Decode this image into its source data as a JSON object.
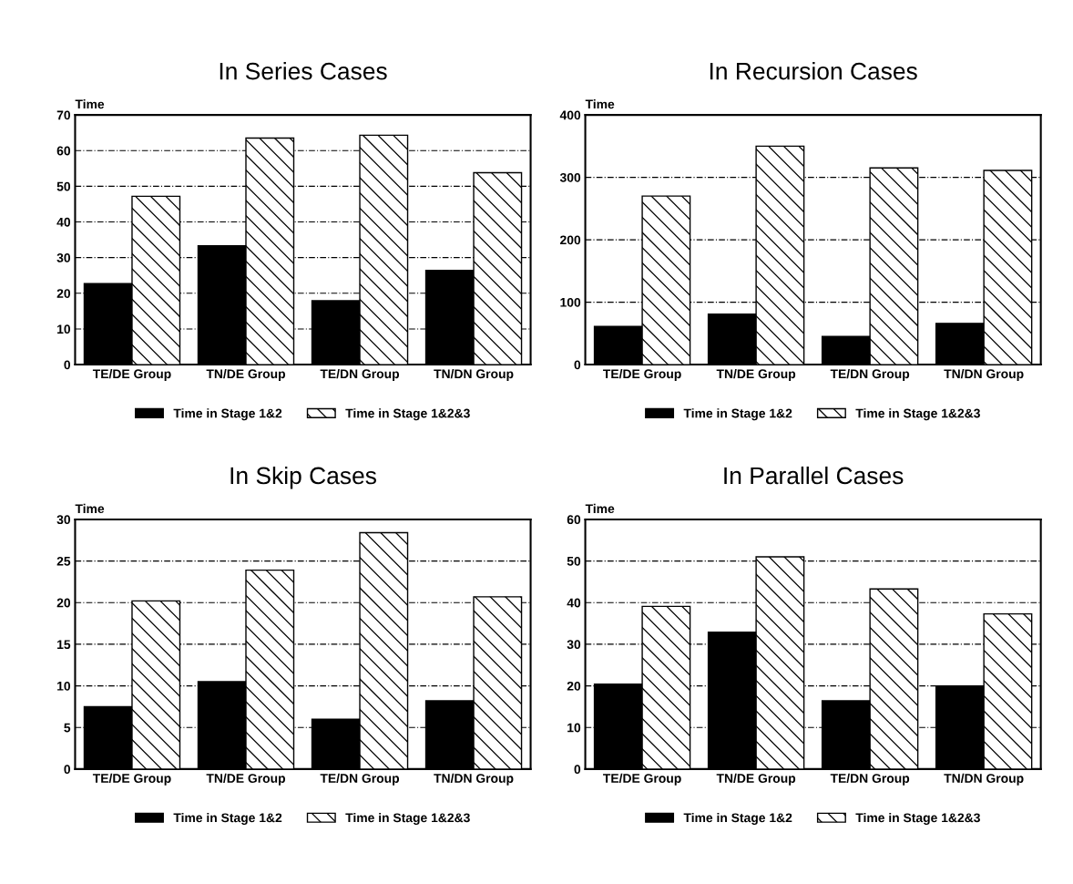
{
  "chart_data": [
    {
      "type": "bar",
      "title": "In Series Cases",
      "ylabel": "Time",
      "categories": [
        "TE/DE Group",
        "TN/DE Group",
        "TE/DN Group",
        "TN/DN Group"
      ],
      "series": [
        {
          "name": "Time in Stage 1&2",
          "color": "#000000",
          "values": [
            22.7,
            33.3,
            17.9,
            26.4
          ]
        },
        {
          "name": "Time in Stage 1&2&3",
          "color": "#000000",
          "values": [
            47.2,
            63.5,
            64.3,
            53.8
          ]
        }
      ],
      "ylim": [
        0,
        70
      ],
      "yticks": [
        0,
        10,
        20,
        30,
        40,
        50,
        60,
        70
      ],
      "grid": "y",
      "legend": "bottom"
    },
    {
      "type": "bar",
      "title": "In Recursion Cases",
      "ylabel": "Time",
      "categories": [
        "TE/DE Group",
        "TN/DE Group",
        "TE/DN Group",
        "TN/DN Group"
      ],
      "series": [
        {
          "name": "Time in Stage 1&2",
          "color": "#000000",
          "values": [
            61,
            81,
            45,
            66
          ]
        },
        {
          "name": "Time in Stage 1&2&3",
          "color": "#000000",
          "values": [
            270,
            350,
            315,
            311
          ]
        }
      ],
      "ylim": [
        0,
        400
      ],
      "yticks": [
        0,
        100,
        200,
        300,
        400
      ],
      "grid": "y",
      "legend": "bottom"
    },
    {
      "type": "bar",
      "title": "In Skip Cases",
      "ylabel": "Time",
      "categories": [
        "TE/DE Group",
        "TN/DE Group",
        "TE/DN Group",
        "TN/DN Group"
      ],
      "series": [
        {
          "name": "Time in Stage 1&2",
          "color": "#000000",
          "values": [
            7.5,
            10.5,
            6.0,
            8.2
          ]
        },
        {
          "name": "Time in Stage 1&2&3",
          "color": "#000000",
          "values": [
            20.2,
            23.9,
            28.4,
            20.7
          ]
        }
      ],
      "ylim": [
        0,
        30
      ],
      "yticks": [
        0,
        5,
        10,
        15,
        20,
        25,
        30
      ],
      "grid": "y",
      "legend": "bottom"
    },
    {
      "type": "bar",
      "title": "In Parallel Cases",
      "ylabel": "Time",
      "categories": [
        "TE/DE Group",
        "TN/DE Group",
        "TE/DN Group",
        "TN/DN Group"
      ],
      "series": [
        {
          "name": "Time in Stage 1&2",
          "color": "#000000",
          "values": [
            20.4,
            32.9,
            16.4,
            20.0
          ]
        },
        {
          "name": "Time in Stage 1&2&3",
          "color": "#000000",
          "values": [
            39.1,
            51.0,
            43.3,
            37.3
          ]
        }
      ],
      "ylim": [
        0,
        60
      ],
      "yticks": [
        0,
        10,
        20,
        30,
        40,
        50,
        60
      ],
      "grid": "y",
      "legend": "bottom"
    }
  ]
}
